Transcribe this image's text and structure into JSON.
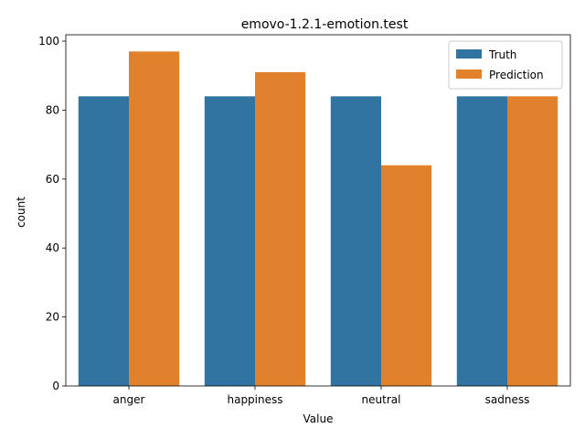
{
  "chart_data": {
    "type": "bar",
    "title": "emovo-1.2.1-emotion.test",
    "xlabel": "Value",
    "ylabel": "count",
    "categories": [
      "anger",
      "happiness",
      "neutral",
      "sadness"
    ],
    "series": [
      {
        "name": "Truth",
        "values": [
          84,
          84,
          84,
          84
        ],
        "color": "#3274a1"
      },
      {
        "name": "Prediction",
        "values": [
          97,
          91,
          64,
          84
        ],
        "color": "#e1812c"
      }
    ],
    "ylim": [
      0,
      101.85
    ],
    "yticks": [
      0,
      20,
      40,
      60,
      80,
      100
    ],
    "grid": false,
    "legend_position": "top-right"
  }
}
